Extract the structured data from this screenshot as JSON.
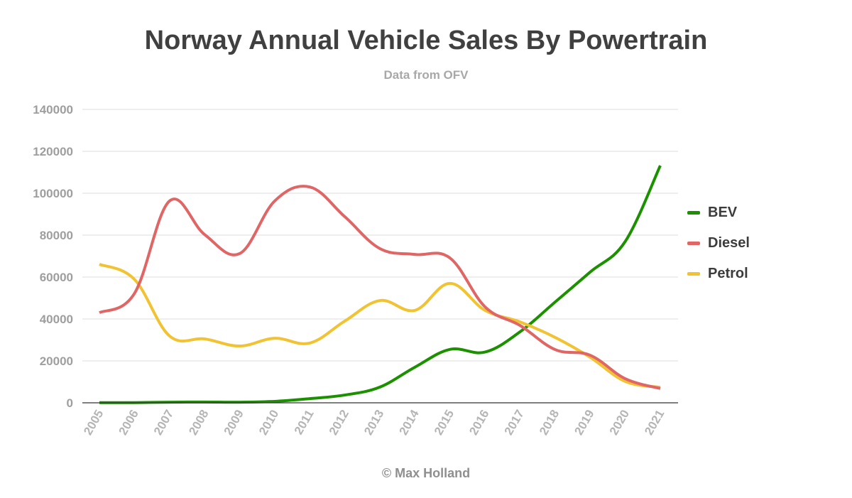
{
  "chart_data": {
    "type": "line",
    "title": "Norway Annual Vehicle Sales By Powertrain",
    "subtitle": "Data from OFV",
    "footer": "© Max Holland",
    "xlabel": "",
    "ylabel": "",
    "x": [
      "2005",
      "2006",
      "2007",
      "2008",
      "2009",
      "2010",
      "2011",
      "2012",
      "2013",
      "2014",
      "2015",
      "2016",
      "2017",
      "2018",
      "2019",
      "2020",
      "2021"
    ],
    "yticks": [
      0,
      20000,
      40000,
      60000,
      80000,
      100000,
      120000,
      140000
    ],
    "ylim": [
      0,
      140000
    ],
    "grid": true,
    "smooth": true,
    "legend_position": "right",
    "series": [
      {
        "name": "BEV",
        "color": "#1c9100",
        "values": [
          100,
          100,
          300,
          400,
          300,
          700,
          2000,
          3700,
          7500,
          17000,
          25500,
          24200,
          33900,
          48100,
          62400,
          77000,
          113200
        ]
      },
      {
        "name": "Diesel",
        "color": "#e06666",
        "values": [
          43000,
          52200,
          96300,
          80300,
          71200,
          96300,
          103000,
          88800,
          73600,
          70800,
          69100,
          45800,
          36900,
          25400,
          22700,
          11500,
          6800
        ]
      },
      {
        "name": "Petrol",
        "color": "#f1c232",
        "values": [
          66100,
          58900,
          31900,
          30500,
          27100,
          30800,
          28500,
          39000,
          48800,
          44100,
          57000,
          44100,
          38600,
          31200,
          21700,
          10200,
          7400
        ]
      }
    ]
  }
}
